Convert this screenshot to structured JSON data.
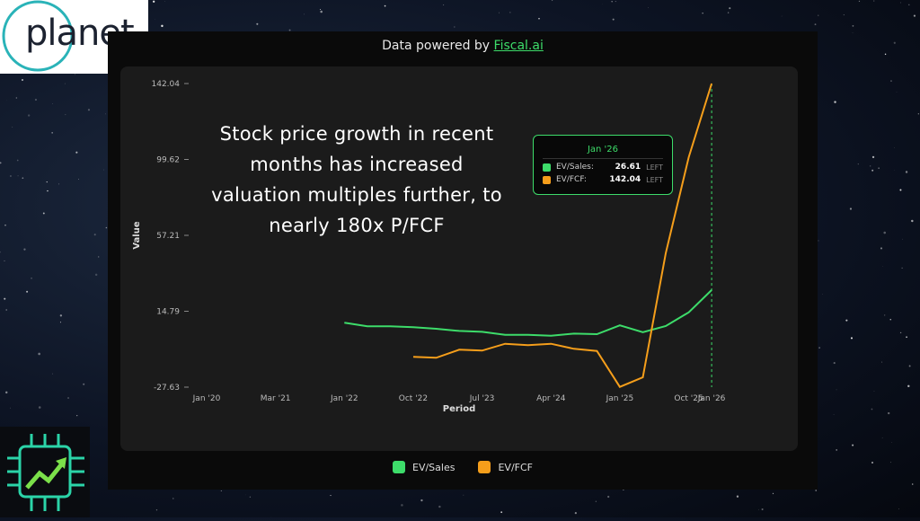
{
  "logo": {
    "text": "planet"
  },
  "header": {
    "prefix": "Data powered by ",
    "link": "Fiscal.ai"
  },
  "overlay_text": "Stock price growth in recent months has increased valuation multiples further, to nearly 180x P/FCF",
  "tooltip": {
    "title": "Jan '26",
    "rows": [
      {
        "label": "EV/Sales:",
        "value": "26.61",
        "side": "LEFT"
      },
      {
        "label": "EV/FCF:",
        "value": "142.04",
        "side": "LEFT"
      }
    ]
  },
  "colors": {
    "ev_sales": "#3ddc6a",
    "ev_fcf": "#f59e1b"
  },
  "chart_data": {
    "type": "line",
    "xlabel": "Period",
    "ylabel": "Value",
    "ylim": [
      -27.63,
      142.04
    ],
    "yticks": [
      "142.04",
      "99.62",
      "57.21",
      "14.79",
      "-27.63"
    ],
    "xticks": [
      "Jan '20",
      "Mar '21",
      "Jan '22",
      "Oct '22",
      "Jul '23",
      "Apr '24",
      "Jan '25",
      "Oct '25",
      "Jan '26"
    ],
    "x": [
      "Jan '22",
      "Apr '22",
      "Jul '22",
      "Oct '22",
      "Jan '23",
      "Apr '23",
      "Jul '23",
      "Oct '23",
      "Jan '24",
      "Apr '24",
      "Jul '24",
      "Oct '24",
      "Jan '25",
      "Apr '25",
      "Jul '25",
      "Oct '25",
      "Jan '26"
    ],
    "series": [
      {
        "name": "EV/Sales",
        "values": [
          8.4,
          6.4,
          6.4,
          5.9,
          5.0,
          3.8,
          3.3,
          1.6,
          1.6,
          1.1,
          2.3,
          2.0,
          6.9,
          3.1,
          6.5,
          14.2,
          26.61
        ]
      },
      {
        "name": "EV/FCF",
        "values": [
          null,
          null,
          null,
          -10.7,
          -11.2,
          -6.7,
          -7.2,
          -3.4,
          -4.2,
          -3.4,
          -6.2,
          -7.4,
          -27.5,
          -22.1,
          47.2,
          100.9,
          142.04
        ]
      }
    ],
    "grid": false,
    "legend": "bottom"
  }
}
